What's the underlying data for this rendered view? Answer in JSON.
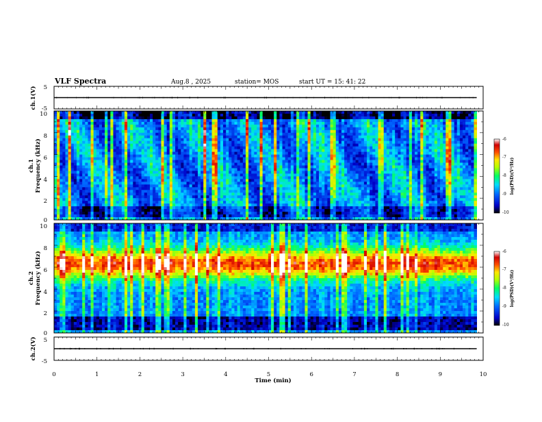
{
  "header": {
    "title": "VLF Spectra",
    "date": "Aug.8 , 2025",
    "station": "station= MOS",
    "start_ut": "start  UT =   15: 41: 22"
  },
  "chart_data": {
    "type": "heatmap",
    "xlabel": "Time (min)",
    "xlim": [
      0,
      10
    ],
    "x_ticks": [
      "0",
      "1",
      "2",
      "3",
      "4",
      "5",
      "6",
      "7",
      "8",
      "9",
      "10"
    ],
    "recording_end_min": 9.85,
    "panels": [
      {
        "name": "ch1-waveform",
        "ylabel": "ch.1(V)",
        "ylim": [
          -5,
          5
        ],
        "y_ticks": [
          "5",
          "-5"
        ]
      },
      {
        "name": "ch1-spectrogram",
        "ylabel_channel": "ch.1",
        "ylabel": "Frequency (kHz)",
        "ylim": [
          0,
          10
        ],
        "y_ticks": [
          "0",
          "2",
          "4",
          "6",
          "8",
          "10"
        ],
        "colorbar": {
          "label": "log(PSD)(V²/Hz)",
          "ticks": [
            "-6",
            "-7",
            "-8",
            "-9",
            "-10"
          ],
          "range": [
            -10,
            -6
          ]
        }
      },
      {
        "name": "ch2-spectrogram",
        "ylabel_channel": "ch.2",
        "ylabel": "Frequency (kHz)",
        "ylim": [
          0,
          10
        ],
        "y_ticks": [
          "0",
          "2",
          "4",
          "6",
          "8",
          "10"
        ],
        "colorbar": {
          "label": "log(PSD)(V²/Hz)",
          "ticks": [
            "-6",
            "-7",
            "-8",
            "-9",
            "-10"
          ],
          "range": [
            -10,
            -6
          ]
        }
      },
      {
        "name": "ch2-waveform",
        "ylabel": "ch.2(V)",
        "ylim": [
          -5,
          5
        ],
        "y_ticks": [
          "5",
          "-5"
        ]
      }
    ]
  },
  "colors": {
    "colormap": [
      "#000000",
      "#0000c8",
      "#0064ff",
      "#00dcff",
      "#00ff64",
      "#b4ff00",
      "#ffe600",
      "#ff5000",
      "#d20000",
      "#ffffff"
    ]
  }
}
